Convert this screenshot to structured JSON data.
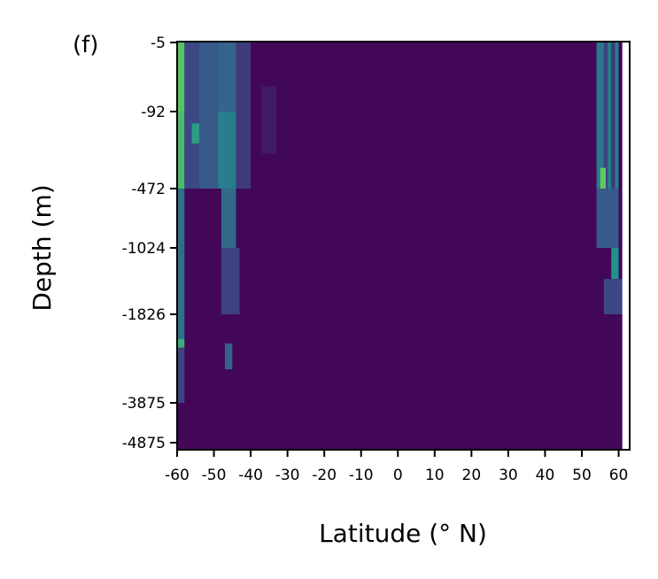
{
  "chart_data": {
    "type": "heatmap",
    "panel_label": "(f)",
    "xlabel": "Latitude (° N)",
    "ylabel": "Depth (m)",
    "xlim": [
      -60,
      63
    ],
    "x_ticks": [
      {
        "value": -60,
        "label": "-60"
      },
      {
        "value": -50,
        "label": "-50"
      },
      {
        "value": -40,
        "label": "-40"
      },
      {
        "value": -30,
        "label": "-30"
      },
      {
        "value": -20,
        "label": "-20"
      },
      {
        "value": -10,
        "label": "-10"
      },
      {
        "value": 0,
        "label": "0"
      },
      {
        "value": 10,
        "label": "10"
      },
      {
        "value": 20,
        "label": "20"
      },
      {
        "value": 30,
        "label": "30"
      },
      {
        "value": 40,
        "label": "40"
      },
      {
        "value": 50,
        "label": "50"
      },
      {
        "value": 60,
        "label": "60"
      }
    ],
    "y_ticks": [
      {
        "value": -5,
        "label": "-5"
      },
      {
        "value": -92,
        "label": "-92"
      },
      {
        "value": -472,
        "label": "-472"
      },
      {
        "value": -1024,
        "label": "-1024"
      },
      {
        "value": -1826,
        "label": "-1826"
      },
      {
        "value": -3875,
        "label": "-3875"
      },
      {
        "value": -4875,
        "label": "-4875"
      }
    ],
    "colormap": [
      "#440154",
      "#3b528b",
      "#21918c",
      "#5ec962",
      "#fde725"
    ],
    "background_value": 0.02,
    "no_data_color": "#ffffff",
    "no_data_x_min": 61,
    "features": [
      {
        "lat_from": -60,
        "lat_to": -58,
        "depth_from": -5,
        "depth_to": -92,
        "value": 0.72
      },
      {
        "lat_from": -60,
        "lat_to": -58,
        "depth_from": -92,
        "depth_to": -472,
        "value": 0.68
      },
      {
        "lat_from": -60,
        "lat_to": -58,
        "depth_from": -472,
        "depth_to": -1826,
        "value": 0.36
      },
      {
        "lat_from": -60,
        "lat_to": -58,
        "depth_from": -1826,
        "depth_to": -2400,
        "value": 0.38
      },
      {
        "lat_from": -60,
        "lat_to": -58,
        "depth_from": -2400,
        "depth_to": -2600,
        "value": 0.62
      },
      {
        "lat_from": -60,
        "lat_to": -58,
        "depth_from": -2600,
        "depth_to": -3875,
        "value": 0.2
      },
      {
        "lat_from": -58,
        "lat_to": -54,
        "depth_from": -5,
        "depth_to": -472,
        "value": 0.22
      },
      {
        "lat_from": -54,
        "lat_to": -49,
        "depth_from": -5,
        "depth_to": -472,
        "value": 0.28
      },
      {
        "lat_from": -49,
        "lat_to": -44,
        "depth_from": -5,
        "depth_to": -92,
        "value": 0.32
      },
      {
        "lat_from": -49,
        "lat_to": -44,
        "depth_from": -92,
        "depth_to": -472,
        "value": 0.42
      },
      {
        "lat_from": -48,
        "lat_to": -44,
        "depth_from": -472,
        "depth_to": -1024,
        "value": 0.34
      },
      {
        "lat_from": -48,
        "lat_to": -43,
        "depth_from": -1024,
        "depth_to": -1826,
        "value": 0.2
      },
      {
        "lat_from": -47,
        "lat_to": -45,
        "depth_from": -2500,
        "depth_to": -3100,
        "value": 0.32
      },
      {
        "lat_from": -56,
        "lat_to": -54,
        "depth_from": -150,
        "depth_to": -250,
        "value": 0.55
      },
      {
        "lat_from": -44,
        "lat_to": -40,
        "depth_from": -5,
        "depth_to": -472,
        "value": 0.18
      },
      {
        "lat_from": -37,
        "lat_to": -33,
        "depth_from": -60,
        "depth_to": -300,
        "value": 0.08
      },
      {
        "lat_from": 54,
        "lat_to": 56,
        "depth_from": -5,
        "depth_to": -472,
        "value": 0.4
      },
      {
        "lat_from": 56,
        "lat_to": 57,
        "depth_from": -5,
        "depth_to": -472,
        "value": 0.2
      },
      {
        "lat_from": 57,
        "lat_to": 58,
        "depth_from": -5,
        "depth_to": -472,
        "value": 0.42
      },
      {
        "lat_from": 58,
        "lat_to": 59,
        "depth_from": -5,
        "depth_to": -472,
        "value": 0.18
      },
      {
        "lat_from": 59,
        "lat_to": 60,
        "depth_from": -5,
        "depth_to": -472,
        "value": 0.42
      },
      {
        "lat_from": 55,
        "lat_to": 56.5,
        "depth_from": -370,
        "depth_to": -472,
        "value": 0.75
      },
      {
        "lat_from": 54,
        "lat_to": 60,
        "depth_from": -472,
        "depth_to": -1024,
        "value": 0.28
      },
      {
        "lat_from": 58,
        "lat_to": 60,
        "depth_from": -1024,
        "depth_to": -1400,
        "value": 0.5
      },
      {
        "lat_from": 56,
        "lat_to": 61,
        "depth_from": -1400,
        "depth_to": -1826,
        "value": 0.22
      }
    ]
  }
}
